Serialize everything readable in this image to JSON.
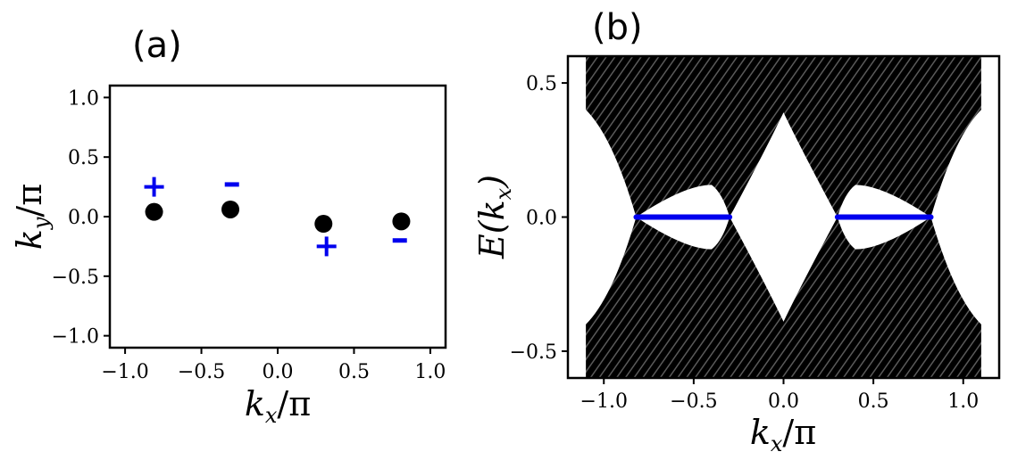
{
  "chart_data": [
    {
      "panel": "(a)",
      "type": "scatter",
      "xlabel": "k_x/π",
      "ylabel": "k_y/π",
      "xlim": [
        -1.1,
        1.1
      ],
      "ylim": [
        -1.1,
        1.1
      ],
      "xticks": [
        -1.0,
        -0.5,
        0.0,
        0.5,
        1.0
      ],
      "yticks": [
        -1.0,
        -0.5,
        0.0,
        0.5,
        1.0
      ],
      "xtick_labels": [
        "−1.0",
        "−0.5",
        "0.0",
        "0.5",
        "1.0"
      ],
      "ytick_labels": [
        "−1.0",
        "−0.5",
        "0.0",
        "0.5",
        "1.0"
      ],
      "grid": false,
      "points": [
        {
          "x": -0.81,
          "y": 0.04,
          "color": "#000000"
        },
        {
          "x": -0.31,
          "y": 0.06,
          "color": "#000000"
        },
        {
          "x": 0.3,
          "y": -0.06,
          "color": "#000000"
        },
        {
          "x": 0.81,
          "y": -0.04,
          "color": "#000000"
        }
      ],
      "annotations": [
        {
          "text": "+",
          "x": -0.81,
          "y": 0.25,
          "color": "#0000ee"
        },
        {
          "text": "−",
          "x": -0.3,
          "y": 0.27,
          "color": "#0000ee"
        },
        {
          "text": "+",
          "x": 0.32,
          "y": -0.25,
          "color": "#0000ee"
        },
        {
          "text": "−",
          "x": 0.8,
          "y": -0.2,
          "color": "#0000ee"
        }
      ]
    },
    {
      "panel": "(b)",
      "type": "line",
      "xlabel": "k_x/π",
      "ylabel": "E(k_x)",
      "xlim": [
        -1.2,
        1.2
      ],
      "ylim": [
        -0.6,
        0.6
      ],
      "xticks": [
        -1.0,
        -0.5,
        0.0,
        0.5,
        1.0
      ],
      "yticks": [
        -0.5,
        0.0,
        0.5
      ],
      "xtick_labels": [
        "−1.0",
        "−0.5",
        "0.0",
        "0.5",
        "1.0"
      ],
      "ytick_labels": [
        "−0.5",
        "0.0",
        "0.5"
      ],
      "grid": false,
      "bulk_bands_color": "#000000",
      "bulk_kx_range": [
        -1.1,
        1.1
      ],
      "gap_edges": [
        {
          "x": -0.82,
          "y": 0.0
        },
        {
          "x": -0.4,
          "y": 0.12
        },
        {
          "x": -0.3,
          "y": 0.0
        },
        {
          "x": 0.0,
          "y": 0.39
        },
        {
          "x": 0.3,
          "y": 0.0
        },
        {
          "x": 0.4,
          "y": 0.12
        },
        {
          "x": 0.82,
          "y": 0.0
        }
      ],
      "series": [
        {
          "x": [
            -0.82,
            -0.3
          ],
          "y": [
            0.0,
            0.0
          ],
          "color": "#0000ee"
        },
        {
          "x": [
            0.3,
            0.82
          ],
          "y": [
            0.0,
            0.0
          ],
          "color": "#0000ee"
        }
      ]
    }
  ],
  "colors": {
    "accent": "#0000ee",
    "ink": "#000000",
    "background": "#ffffff"
  }
}
